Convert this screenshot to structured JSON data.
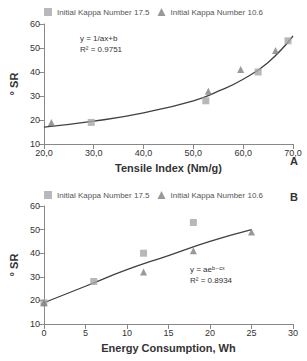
{
  "chart_data": [
    {
      "type": "scatter",
      "title": "A",
      "x_label": "Tensile Index (Nm/g)",
      "y_label": "° SR",
      "xlim": [
        20,
        70
      ],
      "xticks": [
        {
          "value": 20,
          "label": "20,0"
        },
        {
          "value": 30,
          "label": "30,0"
        },
        {
          "value": 40,
          "label": "40,0"
        },
        {
          "value": 50,
          "label": "50,0"
        },
        {
          "value": 60,
          "label": "60,0"
        },
        {
          "value": 70,
          "label": "70,0"
        }
      ],
      "ylim": [
        10,
        60
      ],
      "yticks": [
        10,
        20,
        30,
        40,
        50,
        60
      ],
      "grid": false,
      "legend": "top",
      "series": [
        {
          "name": "Initial Kappa Number 17.5",
          "color": "#a6a6a6",
          "marker": "square",
          "x": [
            29.5,
            52.5,
            63,
            69
          ],
          "values": [
            19,
            28,
            40,
            53
          ]
        },
        {
          "name": "Initial Kappa Number 10.6",
          "color": "#808080",
          "marker": "triangle",
          "x": [
            21.5,
            53,
            59.5,
            66.5
          ],
          "values": [
            19,
            32,
            41,
            49
          ]
        }
      ],
      "fit_line": {
        "color": "#404040",
        "x": [
          20,
          30,
          40,
          50,
          55,
          60,
          65,
          70
        ],
        "values": [
          17,
          19.5,
          23,
          28,
          32,
          37,
          44,
          55
        ]
      },
      "annotations": [
        "y = 1/ax+b",
        "R² = 0.9751"
      ]
    },
    {
      "type": "scatter",
      "title": "B",
      "x_label": "Energy Consumption, Wh",
      "y_label": "° SR",
      "xlim": [
        0,
        30
      ],
      "xticks": [
        0,
        5,
        10,
        15,
        20,
        25,
        30
      ],
      "ylim": [
        10,
        60
      ],
      "yticks": [
        10,
        20,
        30,
        40,
        50,
        60
      ],
      "grid": false,
      "legend": "top",
      "series": [
        {
          "name": "Initial Kappa Number 17.5",
          "color": "#a6a6a6",
          "marker": "square",
          "x": [
            0,
            6,
            12,
            18
          ],
          "values": [
            19,
            28,
            40,
            53
          ]
        },
        {
          "name": "Initial Kappa Number 10.6",
          "color": "#808080",
          "marker": "triangle",
          "x": [
            0,
            12,
            18,
            25
          ],
          "values": [
            19,
            32,
            41,
            49
          ]
        }
      ],
      "fit_line": {
        "color": "#404040",
        "x": [
          0,
          5,
          10,
          15,
          20,
          25
        ],
        "values": [
          19,
          26,
          33,
          39,
          45,
          50
        ]
      },
      "annotations": [
        "y = aeᵇ⁻ᶜˣ",
        "R² = 0.8934"
      ]
    }
  ]
}
